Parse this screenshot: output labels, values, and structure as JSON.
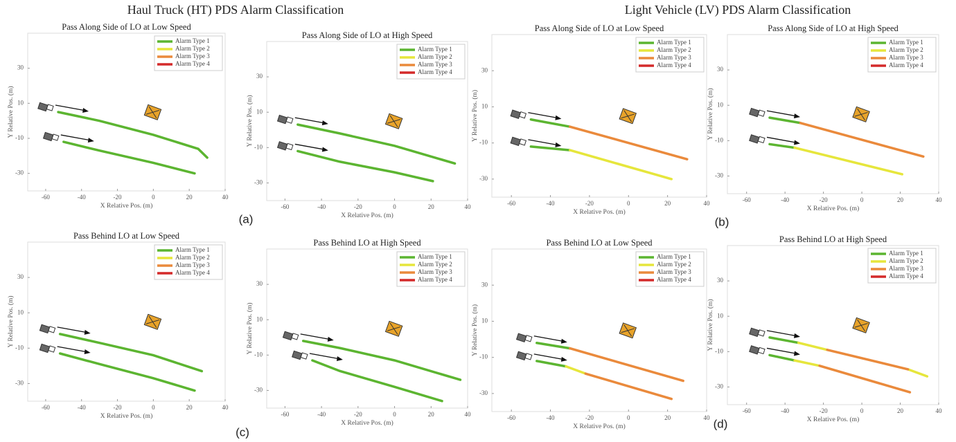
{
  "headers": [
    "Haul Truck (HT) PDS Alarm Classification",
    "Light Vehicle (LV) PDS Alarm Classification"
  ],
  "panel_labels": [
    "(a)",
    "(b)",
    "(c)",
    "(d)"
  ],
  "chart_data": [
    {
      "type": "line",
      "title": "Pass Along Side of LO at Low Speed",
      "xlabel": "X Relative Pos. (m)",
      "ylabel": "Y Relative Pos. (m)",
      "xlim": [
        -70,
        40
      ],
      "ylim": [
        -40,
        50
      ],
      "xticks": [
        -60,
        -40,
        -20,
        0,
        20,
        40
      ],
      "yticks": [
        -30,
        -10,
        10,
        30
      ],
      "series": [
        {
          "name": "Alarm Type 1",
          "color": "#5cb531",
          "x": [
            -53,
            -30,
            0,
            25,
            30,
            null,
            -50,
            -30,
            0,
            23
          ],
          "values": [
            5,
            0,
            -8,
            -16,
            -21,
            null,
            -12,
            -17,
            -24,
            -30
          ]
        },
        {
          "name": "Alarm Type 2",
          "color": "#e6e63c",
          "x": [],
          "values": []
        },
        {
          "name": "Alarm Type 3",
          "color": "#ea8a3c",
          "x": [],
          "values": []
        },
        {
          "name": "Alarm Type 4",
          "color": "#d42a2a",
          "x": [],
          "values": []
        }
      ]
    },
    {
      "type": "line",
      "title": "Pass Along Side of LO at High Speed",
      "xlabel": "X Relative Pos. (m)",
      "ylabel": "Y Relative Pos. (m)",
      "xlim": [
        -70,
        40
      ],
      "ylim": [
        -40,
        50
      ],
      "xticks": [
        -60,
        -40,
        -20,
        0,
        20,
        40
      ],
      "yticks": [
        -30,
        -10,
        10,
        30
      ],
      "series": [
        {
          "name": "Alarm Type 1",
          "color": "#5cb531",
          "x": [
            -53,
            -30,
            0,
            33,
            null,
            -53,
            -30,
            0,
            21
          ],
          "values": [
            3,
            -2,
            -9,
            -19,
            null,
            -12,
            -18,
            -24,
            -29
          ]
        },
        {
          "name": "Alarm Type 2",
          "color": "#e6e63c",
          "x": [],
          "values": []
        },
        {
          "name": "Alarm Type 3",
          "color": "#ea8a3c",
          "x": [],
          "values": []
        },
        {
          "name": "Alarm Type 4",
          "color": "#d42a2a",
          "x": [],
          "values": []
        }
      ]
    },
    {
      "type": "line",
      "title": "Pass Along Side of LO at Low Speed",
      "xlabel": "X Relative Pos. (m)",
      "ylabel": "Y Relative Pos. (m)",
      "xlim": [
        -70,
        40
      ],
      "ylim": [
        -40,
        50
      ],
      "xticks": [
        -60,
        -40,
        -20,
        0,
        20,
        40
      ],
      "yticks": [
        -30,
        -10,
        10,
        30
      ],
      "series": [
        {
          "name": "Alarm Type 1",
          "color": "#5cb531",
          "x": [
            -50,
            -30,
            null,
            -50,
            -30
          ],
          "values": [
            3,
            -1,
            null,
            -12,
            -14
          ]
        },
        {
          "name": "Alarm Type 2",
          "color": "#e6e63c",
          "x": [
            -30,
            22
          ],
          "values": [
            -14,
            -30
          ]
        },
        {
          "name": "Alarm Type 3",
          "color": "#ea8a3c",
          "x": [
            -30,
            30
          ],
          "values": [
            -1,
            -19
          ]
        },
        {
          "name": "Alarm Type 4",
          "color": "#d42a2a",
          "x": [],
          "values": []
        }
      ]
    },
    {
      "type": "line",
      "title": "Pass Along Side of LO at High Speed",
      "xlabel": "X Relative Pos. (m)",
      "ylabel": "Y Relative Pos. (m)",
      "xlim": [
        -70,
        40
      ],
      "ylim": [
        -40,
        50
      ],
      "xticks": [
        -60,
        -40,
        -20,
        0,
        20,
        40
      ],
      "yticks": [
        -30,
        -10,
        10,
        30
      ],
      "series": [
        {
          "name": "Alarm Type 1",
          "color": "#5cb531",
          "x": [
            -48,
            -32,
            null,
            -48,
            -35
          ],
          "values": [
            3,
            0,
            null,
            -12,
            -14
          ]
        },
        {
          "name": "Alarm Type 2",
          "color": "#e6e63c",
          "x": [
            -35,
            21
          ],
          "values": [
            -14,
            -29
          ]
        },
        {
          "name": "Alarm Type 3",
          "color": "#ea8a3c",
          "x": [
            -32,
            32
          ],
          "values": [
            0,
            -19
          ]
        },
        {
          "name": "Alarm Type 4",
          "color": "#d42a2a",
          "x": [],
          "values": []
        }
      ]
    },
    {
      "type": "line",
      "title": "Pass Behind LO at Low Speed",
      "xlabel": "X Relative Pos. (m)",
      "ylabel": "Y Relative Pos. (m)",
      "xlim": [
        -70,
        40
      ],
      "ylim": [
        -40,
        50
      ],
      "xticks": [
        -60,
        -40,
        -20,
        0,
        20,
        40
      ],
      "yticks": [
        -30,
        -10,
        10,
        30
      ],
      "series": [
        {
          "name": "Alarm Type 1",
          "color": "#5cb531",
          "x": [
            -52,
            -30,
            0,
            27,
            null,
            -52,
            -30,
            0,
            23
          ],
          "values": [
            -2,
            -7,
            -14,
            -23,
            null,
            -13,
            -19,
            -27,
            -34
          ]
        },
        {
          "name": "Alarm Type 2",
          "color": "#e6e63c",
          "x": [],
          "values": []
        },
        {
          "name": "Alarm Type 3",
          "color": "#ea8a3c",
          "x": [],
          "values": []
        },
        {
          "name": "Alarm Type 4",
          "color": "#d42a2a",
          "x": [],
          "values": []
        }
      ]
    },
    {
      "type": "line",
      "title": "Pass Behind LO at High Speed",
      "xlabel": "X Relative Pos. (m)",
      "ylabel": "Y Relative Pos. (m)",
      "xlim": [
        -70,
        40
      ],
      "ylim": [
        -40,
        50
      ],
      "xticks": [
        -60,
        -40,
        -20,
        0,
        20,
        40
      ],
      "yticks": [
        -30,
        -10,
        10,
        30
      ],
      "series": [
        {
          "name": "Alarm Type 1",
          "color": "#5cb531",
          "x": [
            -50,
            -30,
            0,
            36,
            null,
            -45,
            -30,
            0,
            26
          ],
          "values": [
            -2,
            -6,
            -13,
            -24,
            null,
            -13,
            -19,
            -28,
            -36
          ]
        },
        {
          "name": "Alarm Type 2",
          "color": "#e6e63c",
          "x": [],
          "values": []
        },
        {
          "name": "Alarm Type 3",
          "color": "#ea8a3c",
          "x": [],
          "values": []
        },
        {
          "name": "Alarm Type 4",
          "color": "#d42a2a",
          "x": [],
          "values": []
        }
      ]
    },
    {
      "type": "line",
      "title": "Pass Behind LO at Low Speed",
      "xlabel": "X Relative Pos. (m)",
      "ylabel": "Y Relative Pos. (m)",
      "xlim": [
        -70,
        40
      ],
      "ylim": [
        -40,
        50
      ],
      "xticks": [
        -60,
        -40,
        -20,
        0,
        20,
        40
      ],
      "yticks": [
        -30,
        -10,
        10,
        30
      ],
      "series": [
        {
          "name": "Alarm Type 1",
          "color": "#5cb531",
          "x": [
            -47,
            -30,
            null,
            -47,
            -32
          ],
          "values": [
            -2,
            -5,
            null,
            -12,
            -15
          ]
        },
        {
          "name": "Alarm Type 2",
          "color": "#e6e63c",
          "x": [
            -32,
            -22
          ],
          "values": [
            -15,
            -19
          ]
        },
        {
          "name": "Alarm Type 3",
          "color": "#ea8a3c",
          "x": [
            -30,
            28,
            null,
            -22,
            22
          ],
          "values": [
            -5,
            -23,
            null,
            -19,
            -33
          ]
        },
        {
          "name": "Alarm Type 4",
          "color": "#d42a2a",
          "x": [],
          "values": []
        }
      ]
    },
    {
      "type": "line",
      "title": "Pass Behind LO at High Speed",
      "xlabel": "X Relative Pos. (m)",
      "ylabel": "Y Relative Pos. (m)",
      "xlim": [
        -70,
        40
      ],
      "ylim": [
        -40,
        50
      ],
      "xticks": [
        -60,
        -40,
        -20,
        0,
        20,
        40
      ],
      "yticks": [
        -30,
        -10,
        10,
        30
      ],
      "series": [
        {
          "name": "Alarm Type 1",
          "color": "#5cb531",
          "x": [
            -48,
            -33,
            null,
            -48,
            -35
          ],
          "values": [
            -2,
            -5,
            null,
            -12,
            -15
          ]
        },
        {
          "name": "Alarm Type 2",
          "color": "#e6e63c",
          "x": [
            -33,
            -18,
            null,
            24,
            34,
            null,
            -35,
            -22
          ],
          "values": [
            -5,
            -9,
            null,
            -20,
            -24,
            null,
            -15,
            -18
          ]
        },
        {
          "name": "Alarm Type 3",
          "color": "#ea8a3c",
          "x": [
            -18,
            24,
            null,
            -22,
            25
          ],
          "values": [
            -9,
            -20,
            null,
            -18,
            -33
          ]
        },
        {
          "name": "Alarm Type 4",
          "color": "#d42a2a",
          "x": [],
          "values": []
        }
      ]
    }
  ]
}
